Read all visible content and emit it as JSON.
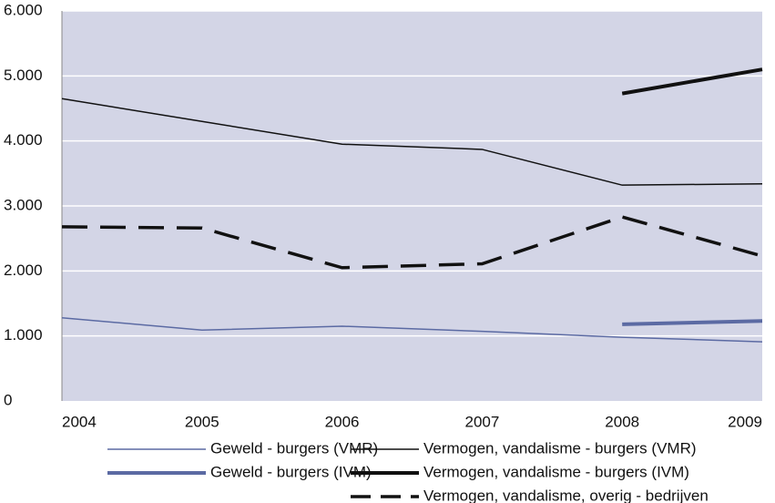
{
  "chart_data": {
    "type": "line",
    "categories": [
      "2004",
      "2005",
      "2006",
      "2007",
      "2008",
      "2009"
    ],
    "series": [
      {
        "name": "Geweld - burgers (VMR)",
        "color": "#5b6aa3",
        "line_width": 1.5,
        "dashed": false,
        "values": [
          1280,
          1090,
          1150,
          1070,
          980,
          910
        ]
      },
      {
        "name": "Geweld - burgers (IVM)",
        "color": "#5b6aa3",
        "line_width": 4,
        "dashed": false,
        "values": [
          null,
          null,
          null,
          null,
          1180,
          1230
        ]
      },
      {
        "name": "Vermogen, vandalisme - burgers (VMR)",
        "color": "#111111",
        "line_width": 1.5,
        "dashed": false,
        "values": [
          4650,
          4300,
          3950,
          3870,
          3320,
          3340
        ]
      },
      {
        "name": "Vermogen, vandalisme - burgers (IVM)",
        "color": "#111111",
        "line_width": 4,
        "dashed": false,
        "values": [
          null,
          null,
          null,
          null,
          4730,
          5100
        ]
      },
      {
        "name": "Vermogen, vandalisme, overig - bedrijven",
        "color": "#111111",
        "line_width": 3.5,
        "dashed": true,
        "values": [
          2680,
          2660,
          2050,
          2110,
          2830,
          2230
        ]
      }
    ],
    "ylim": [
      0,
      6000
    ],
    "yticks": [
      0,
      {
        "value": 1000,
        "label": "1.000"
      },
      {
        "value": 2000,
        "label": "2.000"
      },
      {
        "value": 3000,
        "label": "3.000"
      },
      {
        "value": 4000,
        "label": "4.000"
      },
      {
        "value": 5000,
        "label": "5.000"
      },
      {
        "value": 6000,
        "label": "6.000"
      }
    ],
    "grid": true,
    "plot_background": "#d3d5e6"
  }
}
